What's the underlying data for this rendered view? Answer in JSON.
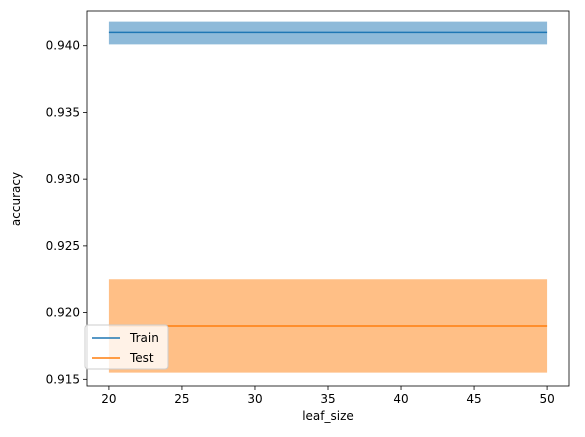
{
  "chart_data": {
    "type": "line",
    "title": "",
    "xlabel": "leaf_size",
    "ylabel": "accuracy",
    "xlim": [
      18.5,
      51.5
    ],
    "ylim": [
      0.9145,
      0.9426
    ],
    "xticks": [
      20,
      25,
      30,
      35,
      40,
      45,
      50
    ],
    "yticks": [
      0.915,
      0.92,
      0.925,
      0.93,
      0.935,
      0.94
    ],
    "grid": false,
    "legend_position": "lower-left",
    "series": [
      {
        "name": "Train",
        "color": "#1f77b4",
        "band_color": "#8ebad9",
        "x": [
          20,
          50
        ],
        "y": [
          0.941,
          0.941
        ],
        "band_lower": [
          0.9401,
          0.9401
        ],
        "band_upper": [
          0.9418,
          0.9418
        ]
      },
      {
        "name": "Test",
        "color": "#ff7f0e",
        "band_color": "#ffbf86",
        "x": [
          20,
          50
        ],
        "y": [
          0.919,
          0.919
        ],
        "band_lower": [
          0.9155,
          0.9155
        ],
        "band_upper": [
          0.9225,
          0.9225
        ]
      }
    ]
  }
}
